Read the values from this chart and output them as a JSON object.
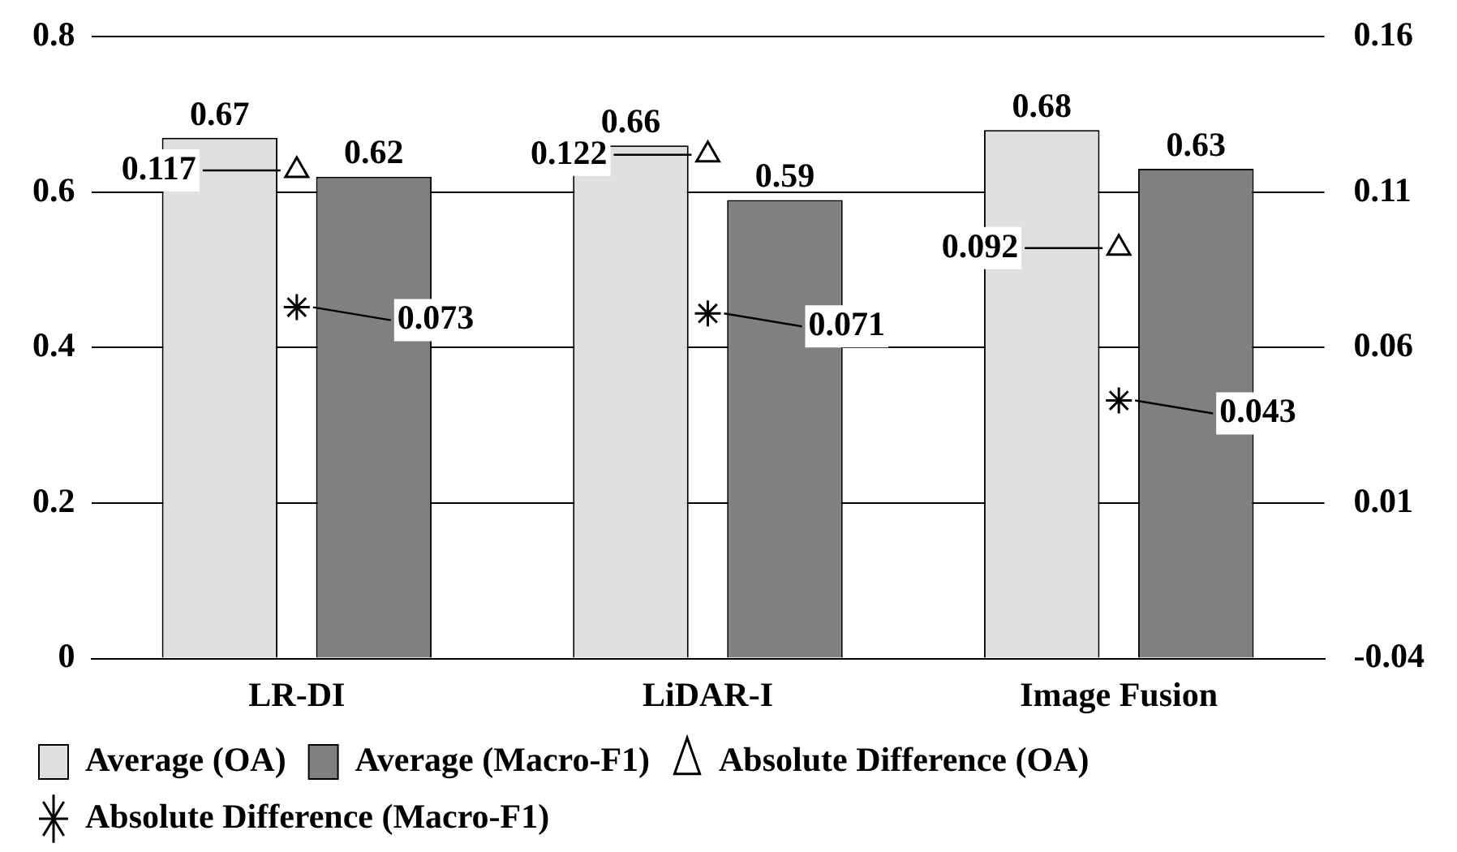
{
  "chart_data": {
    "type": "bar",
    "categories": [
      "LR-DI",
      "LiDAR-I",
      "Image Fusion"
    ],
    "series": [
      {
        "name": "Average (OA)",
        "color": "#e0e0e0",
        "values": [
          0.67,
          0.66,
          0.68
        ]
      },
      {
        "name": "Average (Macro-F1)",
        "color": "#808080",
        "values": [
          0.62,
          0.59,
          0.63
        ]
      },
      {
        "name": "Absolute Difference (OA)",
        "type": "scatter",
        "axis": "y2",
        "marker": "triangle",
        "color": "#000000",
        "values": [
          0.117,
          0.122,
          0.092
        ]
      },
      {
        "name": "Absolute Difference (Macro-F1)",
        "type": "scatter",
        "axis": "y2",
        "marker": "cross",
        "color": "#000000",
        "values": [
          0.073,
          0.071,
          0.043
        ]
      }
    ],
    "ylim": [
      0,
      0.8
    ],
    "yticks": [
      0,
      0.2,
      0.4,
      0.6,
      0.8
    ],
    "y2lim": [
      -0.04,
      0.16
    ],
    "y2ticks": [
      -0.04,
      0.01,
      0.06,
      0.11,
      0.16
    ],
    "grid": "y",
    "legend": "bottom",
    "data_labels": true
  }
}
